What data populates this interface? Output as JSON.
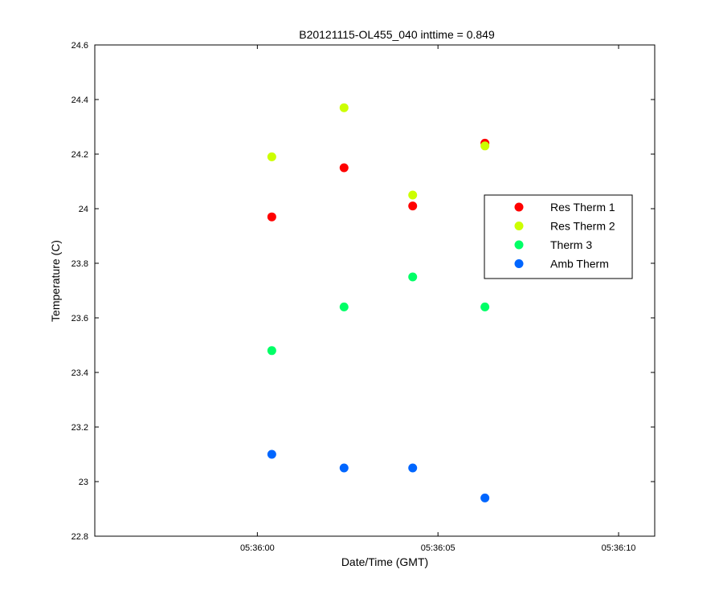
{
  "chart_data": {
    "type": "scatter",
    "title": "B20121115-OL455_040 inttime = 0.849",
    "xlabel": "Date/Time (GMT)",
    "ylabel": "Temperature (C)",
    "x_unit": "time",
    "xlim": [
      "05:35:55.5",
      "05:36:11"
    ],
    "ylim": [
      22.8,
      24.6
    ],
    "xticks": [
      "05:36:00",
      "05:36:05",
      "05:36:10"
    ],
    "yticks": [
      "22.8",
      "23",
      "23.2",
      "23.4",
      "23.6",
      "23.8",
      "24",
      "24.2",
      "24.4",
      "24.6"
    ],
    "legend_position": "right",
    "grid": false,
    "series": [
      {
        "name": "Res Therm 1",
        "color": "#ff0000",
        "points": [
          {
            "x": "05:36:00.4",
            "y": 23.97
          },
          {
            "x": "05:36:02.4",
            "y": 24.15
          },
          {
            "x": "05:36:04.3",
            "y": 24.01
          },
          {
            "x": "05:36:06.3",
            "y": 24.24
          }
        ]
      },
      {
        "name": "Res Therm 2",
        "color": "#ccff00",
        "points": [
          {
            "x": "05:36:00.4",
            "y": 24.19
          },
          {
            "x": "05:36:02.4",
            "y": 24.37
          },
          {
            "x": "05:36:04.3",
            "y": 24.05
          },
          {
            "x": "05:36:06.3",
            "y": 24.23
          }
        ]
      },
      {
        "name": "Therm 3",
        "color": "#00ff66",
        "points": [
          {
            "x": "05:36:00.4",
            "y": 23.48
          },
          {
            "x": "05:36:02.4",
            "y": 23.64
          },
          {
            "x": "05:36:04.3",
            "y": 23.75
          },
          {
            "x": "05:36:06.3",
            "y": 23.64
          }
        ]
      },
      {
        "name": "Amb Therm",
        "color": "#0066ff",
        "points": [
          {
            "x": "05:36:00.4",
            "y": 23.1
          },
          {
            "x": "05:36:02.4",
            "y": 23.05
          },
          {
            "x": "05:36:04.3",
            "y": 23.05
          },
          {
            "x": "05:36:06.3",
            "y": 22.94
          }
        ]
      }
    ]
  }
}
